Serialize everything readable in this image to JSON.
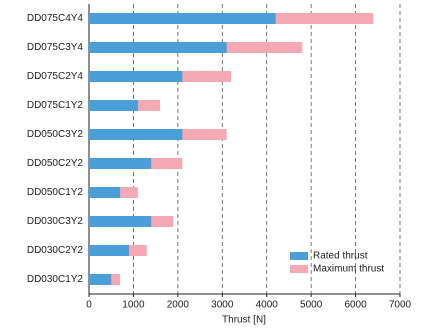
{
  "chart_data": {
    "type": "bar",
    "orientation": "horizontal",
    "overlap": true,
    "xlabel": "Thrust [N]",
    "categories": [
      "DD075C4Y4",
      "DD075C3Y4",
      "DD075C2Y4",
      "DD075C1Y2",
      "DD050C3Y2",
      "DD050C2Y2",
      "DD050C1Y2",
      "DD030C3Y2",
      "DD030C2Y2",
      "DD030C1Y2"
    ],
    "series": [
      {
        "name": "Maximum thrust",
        "color": "#f5a9b4",
        "values": [
          6400,
          4800,
          3200,
          1600,
          3100,
          2100,
          1100,
          1900,
          1300,
          700
        ]
      },
      {
        "name": "Rated thrust",
        "color": "#4b9fd9",
        "values": [
          4200,
          3100,
          2100,
          1100,
          2100,
          1400,
          700,
          1400,
          900,
          500
        ]
      }
    ],
    "xlim": [
      0,
      7000
    ],
    "xticks": [
      0,
      1000,
      2000,
      3000,
      4000,
      5000,
      6000,
      7000
    ],
    "grid": true,
    "legend": "lower right"
  }
}
